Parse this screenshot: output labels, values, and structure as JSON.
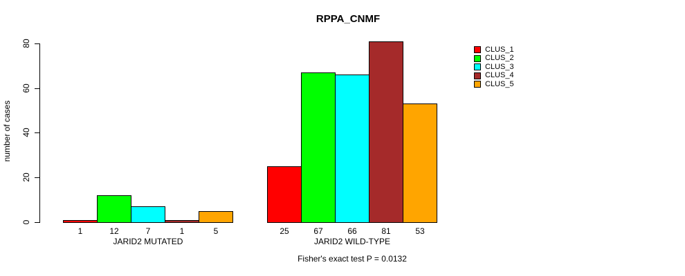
{
  "chart_data": {
    "type": "bar",
    "title": "RPPA_CNMF",
    "ylabel": "number of cases",
    "xlabel": "",
    "ylim": [
      0,
      80
    ],
    "yticks": [
      0,
      20,
      40,
      60,
      80
    ],
    "grid": false,
    "legend_position": "right",
    "annotation": "Fisher's exact test P = 0.0132",
    "bar_value_labels_shown": true,
    "categories": [
      "JARID2 MUTATED",
      "JARID2 WILD-TYPE"
    ],
    "series": [
      {
        "name": "CLUS_1",
        "color": "#FF0000",
        "values": [
          1,
          25
        ]
      },
      {
        "name": "CLUS_2",
        "color": "#00FF00",
        "values": [
          12,
          67
        ]
      },
      {
        "name": "CLUS_3",
        "color": "#00FFFF",
        "values": [
          7,
          66
        ]
      },
      {
        "name": "CLUS_4",
        "color": "#A52A2A",
        "values": [
          1,
          81
        ]
      },
      {
        "name": "CLUS_5",
        "color": "#FFA500",
        "values": [
          5,
          53
        ]
      }
    ],
    "groups": [
      {
        "label": "JARID2 MUTATED",
        "values": [
          1,
          12,
          7,
          1,
          5
        ]
      },
      {
        "label": "JARID2 WILD-TYPE",
        "values": [
          25,
          67,
          66,
          81,
          53
        ]
      }
    ]
  }
}
